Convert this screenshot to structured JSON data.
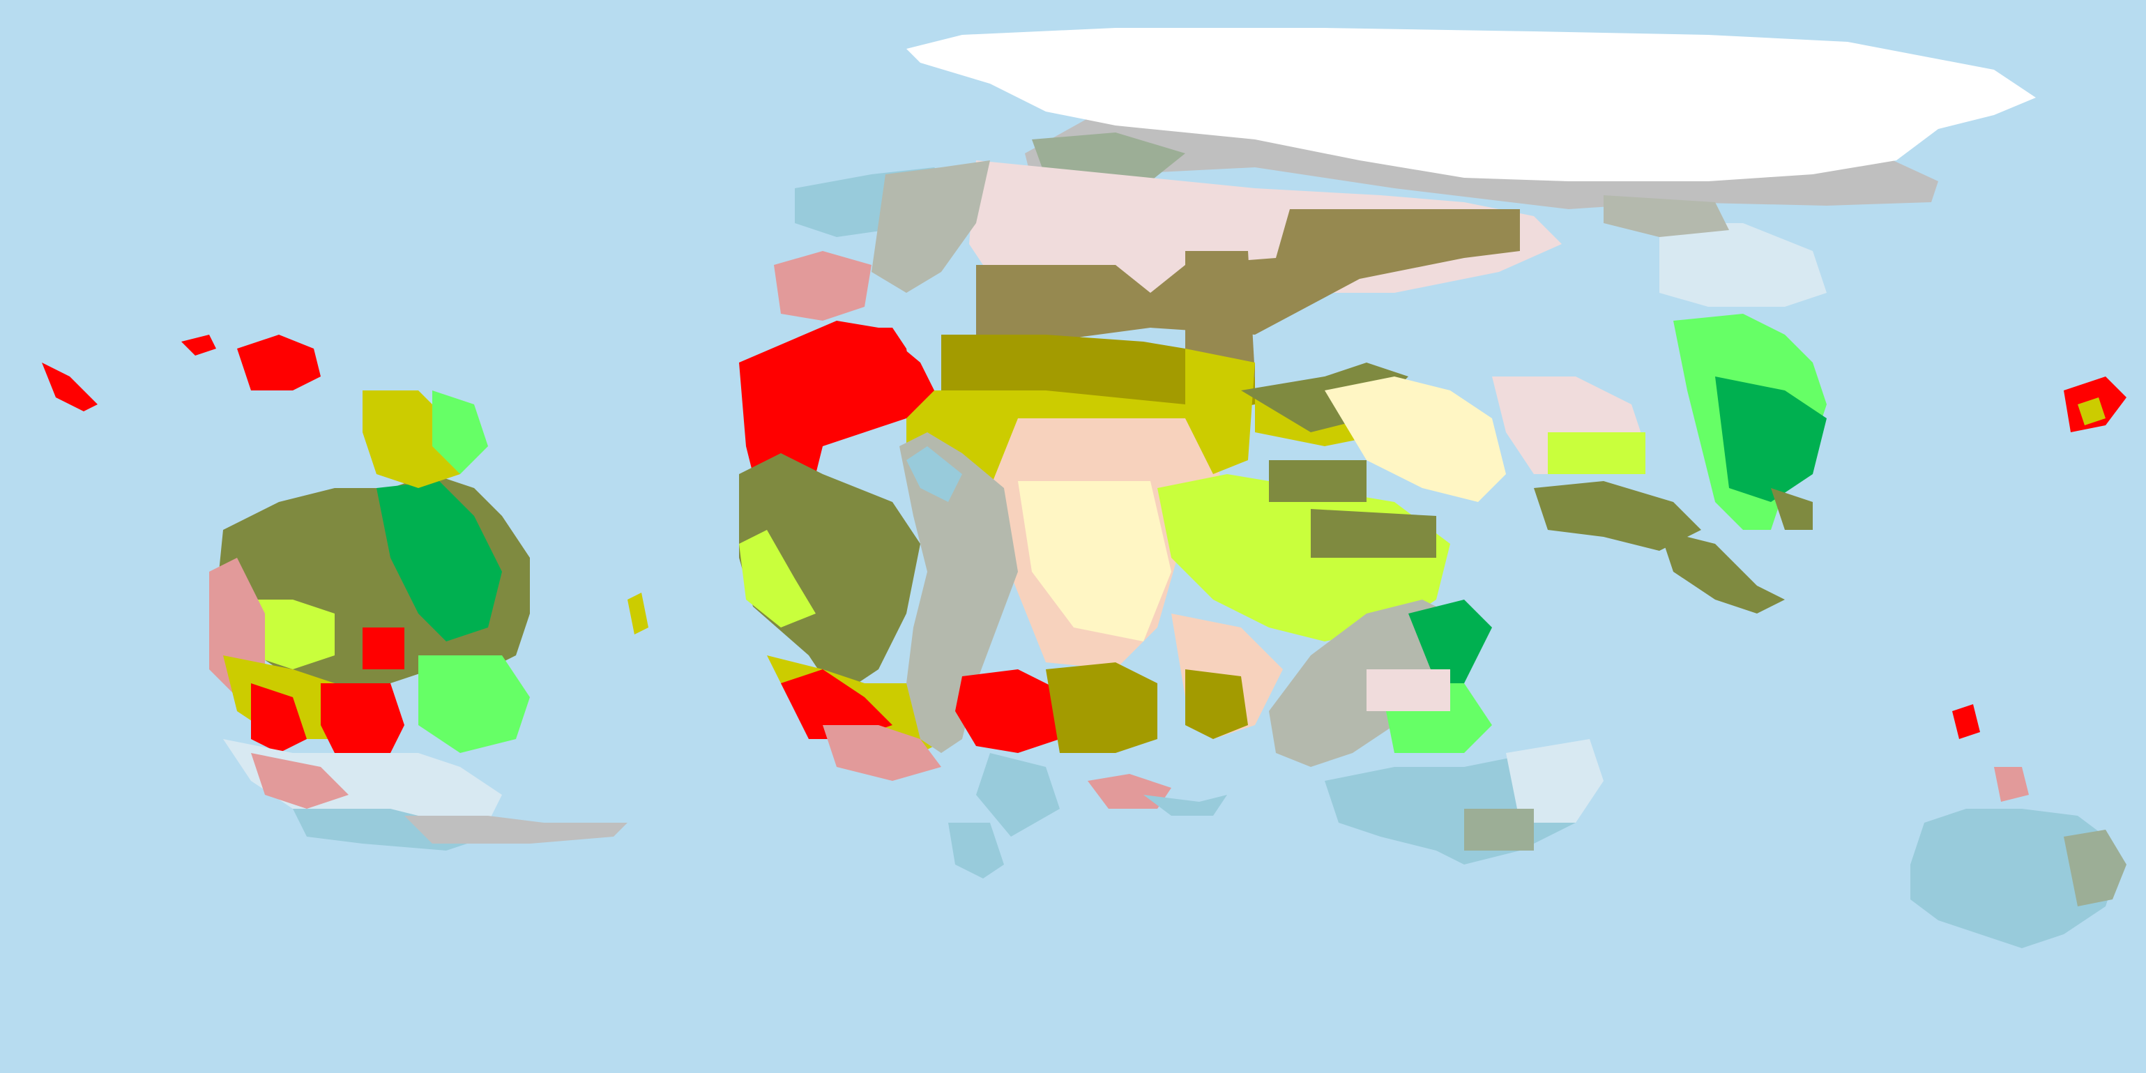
{
  "map": {
    "kind": "biome-map",
    "projection": "equirectangular",
    "has_text_labels": false,
    "colors": {
      "ocean": "#b7dcf0",
      "ice_cap": "#ffffff",
      "tundra_light": "#d8e9f2",
      "cold_steppe": "#f0dcdc",
      "peach_grassland": "#f7d2bd",
      "pale_yellow_savanna": "#fff6c4",
      "yellow_shrubland": "#cccc00",
      "dark_yellow_shrubland": "#a39b00",
      "olive_forest": "#7f8a40",
      "brown_taiga": "#968950",
      "light_green": "#c9ff3c",
      "lime_green": "#66ff66",
      "dark_green_rainforest": "#00b050",
      "red_desert": "#ff0000",
      "pink_desert": "#e29a9a",
      "light_blue_cold": "#98cbdb",
      "grey_mountain": "#b4b9ad",
      "sage_green": "#9cae96",
      "silver": "#bfbfbf"
    }
  }
}
